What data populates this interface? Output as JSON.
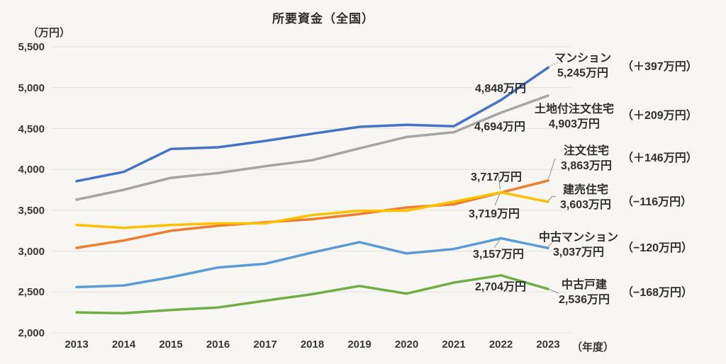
{
  "title": "所要資金（全国）",
  "y_axis": {
    "unit": "（万円）",
    "ticks": [
      "5,500",
      "5,000",
      "4,500",
      "4,000",
      "3,500",
      "3,000",
      "2,500",
      "2,000"
    ]
  },
  "x_axis": {
    "unit": "（年度）",
    "ticks": [
      "2013",
      "2014",
      "2015",
      "2016",
      "2017",
      "2018",
      "2019",
      "2020",
      "2021",
      "2022",
      "2023"
    ]
  },
  "chart_data": {
    "type": "line",
    "title": "所要資金（全国）",
    "xlabel": "年度",
    "ylabel": "万円",
    "x": [
      "2013",
      "2014",
      "2015",
      "2016",
      "2017",
      "2018",
      "2019",
      "2020",
      "2021",
      "2022",
      "2023"
    ],
    "ylim": [
      2000,
      5500
    ],
    "y_tick_step": 500,
    "grid": true,
    "legend_position": "right-of-line-ends",
    "series": [
      {
        "name": "マンション",
        "color": "#4472C4",
        "values": [
          3856,
          3970,
          4250,
          4270,
          4348,
          4437,
          4521,
          4545,
          4528,
          4848,
          5245
        ],
        "label_2022": "4,848万円",
        "end_label": "5,245万円",
        "change_label": "（＋397万円）"
      },
      {
        "name": "土地付注文住宅",
        "color": "#A5A5A5",
        "values": [
          3630,
          3750,
          3897,
          3955,
          4039,
          4113,
          4257,
          4397,
          4455,
          4694,
          4903
        ],
        "label_2022": "4,694万円",
        "end_label": "4,903万円",
        "change_label": "（＋209万円）"
      },
      {
        "name": "注文住宅",
        "color": "#ED7D31",
        "values": [
          3040,
          3130,
          3250,
          3310,
          3353,
          3391,
          3454,
          3534,
          3572,
          3717,
          3863
        ],
        "label_2022": "3,717万円",
        "end_label": "3,863万円",
        "change_label": "（＋146万円）"
      },
      {
        "name": "建売住宅",
        "color": "#FFC000",
        "values": [
          3320,
          3285,
          3320,
          3340,
          3340,
          3442,
          3494,
          3495,
          3605,
          3719,
          3603
        ],
        "label_2022": "3,719万円",
        "end_label": "3,603万円",
        "change_label": "（−116万円）"
      },
      {
        "name": "中古マンション",
        "color": "#5B9BD5",
        "values": [
          2560,
          2580,
          2680,
          2800,
          2845,
          2983,
          3110,
          2971,
          3026,
          3157,
          3037
        ],
        "label_2022": "3,157万円",
        "end_label": "3,037万円",
        "change_label": "（−120万円）"
      },
      {
        "name": "中古戸建",
        "color": "#70AD47",
        "values": [
          2250,
          2240,
          2280,
          2310,
          2393,
          2473,
          2574,
          2480,
          2614,
          2704,
          2536
        ],
        "label_2022": "2,704万円",
        "end_label": "2,536万円",
        "change_label": "（−168万円）"
      }
    ]
  }
}
